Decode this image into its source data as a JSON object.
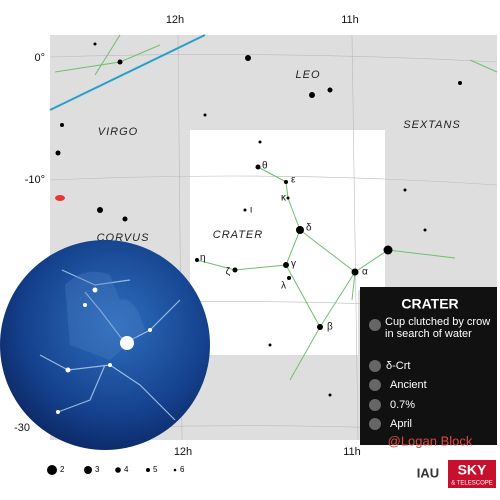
{
  "ra_labels_top": [
    "12h",
    "11h"
  ],
  "ra_labels_bottom": [
    "12h",
    "11h"
  ],
  "dec_labels": [
    "0°",
    "-10°",
    "-30"
  ],
  "constellations": [
    "LEO",
    "VIRGO",
    "SEXTANS",
    "CRATER",
    "CORVUS"
  ],
  "greek": {
    "theta": "θ",
    "epsilon": "ε",
    "kappa": "κ",
    "iota": "ι",
    "delta": "δ",
    "eta": "η",
    "zeta": "ζ",
    "gamma": "γ",
    "alpha": "α",
    "lambda": "λ",
    "beta": "β"
  },
  "panel": {
    "title": "CRATER",
    "myth": "Cup clutched by crow in search of water",
    "brightest": "δ-Crt",
    "origin": "Ancient",
    "sky_area": "0.7%",
    "best_month": "April"
  },
  "magnitude_legend": [
    "2",
    "3",
    "4",
    "5",
    "6"
  ],
  "watermark": "@Logan Block",
  "logos": [
    "IAU",
    "SKY",
    "& TELESCOPE"
  ]
}
